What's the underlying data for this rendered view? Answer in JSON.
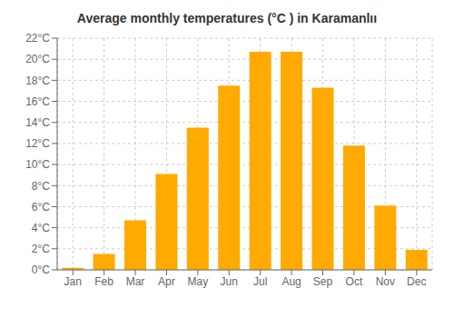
{
  "chart_data": {
    "type": "bar",
    "title": "Average monthly temperatures (°C ) in Karamanlıı",
    "categories": [
      "Jan",
      "Feb",
      "Mar",
      "Apr",
      "May",
      "Jun",
      "Jul",
      "Aug",
      "Sep",
      "Oct",
      "Nov",
      "Dec"
    ],
    "values": [
      0.2,
      1.5,
      4.7,
      9.1,
      13.5,
      17.5,
      20.7,
      20.7,
      17.3,
      11.8,
      6.1,
      1.9
    ],
    "color": "#FFAA00",
    "ylim": [
      0,
      22
    ],
    "yticks": [
      {
        "value": 0,
        "label": "0°C"
      },
      {
        "value": 2,
        "label": "2°C"
      },
      {
        "value": 4,
        "label": "4°C"
      },
      {
        "value": 6,
        "label": "6°C"
      },
      {
        "value": 8,
        "label": "8°C"
      },
      {
        "value": 10,
        "label": "10°C"
      },
      {
        "value": 12,
        "label": "12°C"
      },
      {
        "value": 14,
        "label": "14°C"
      },
      {
        "value": 16,
        "label": "16°C"
      },
      {
        "value": 18,
        "label": "18°C"
      },
      {
        "value": 20,
        "label": "20°C"
      },
      {
        "value": 22,
        "label": "22°C"
      }
    ],
    "grid": true
  }
}
